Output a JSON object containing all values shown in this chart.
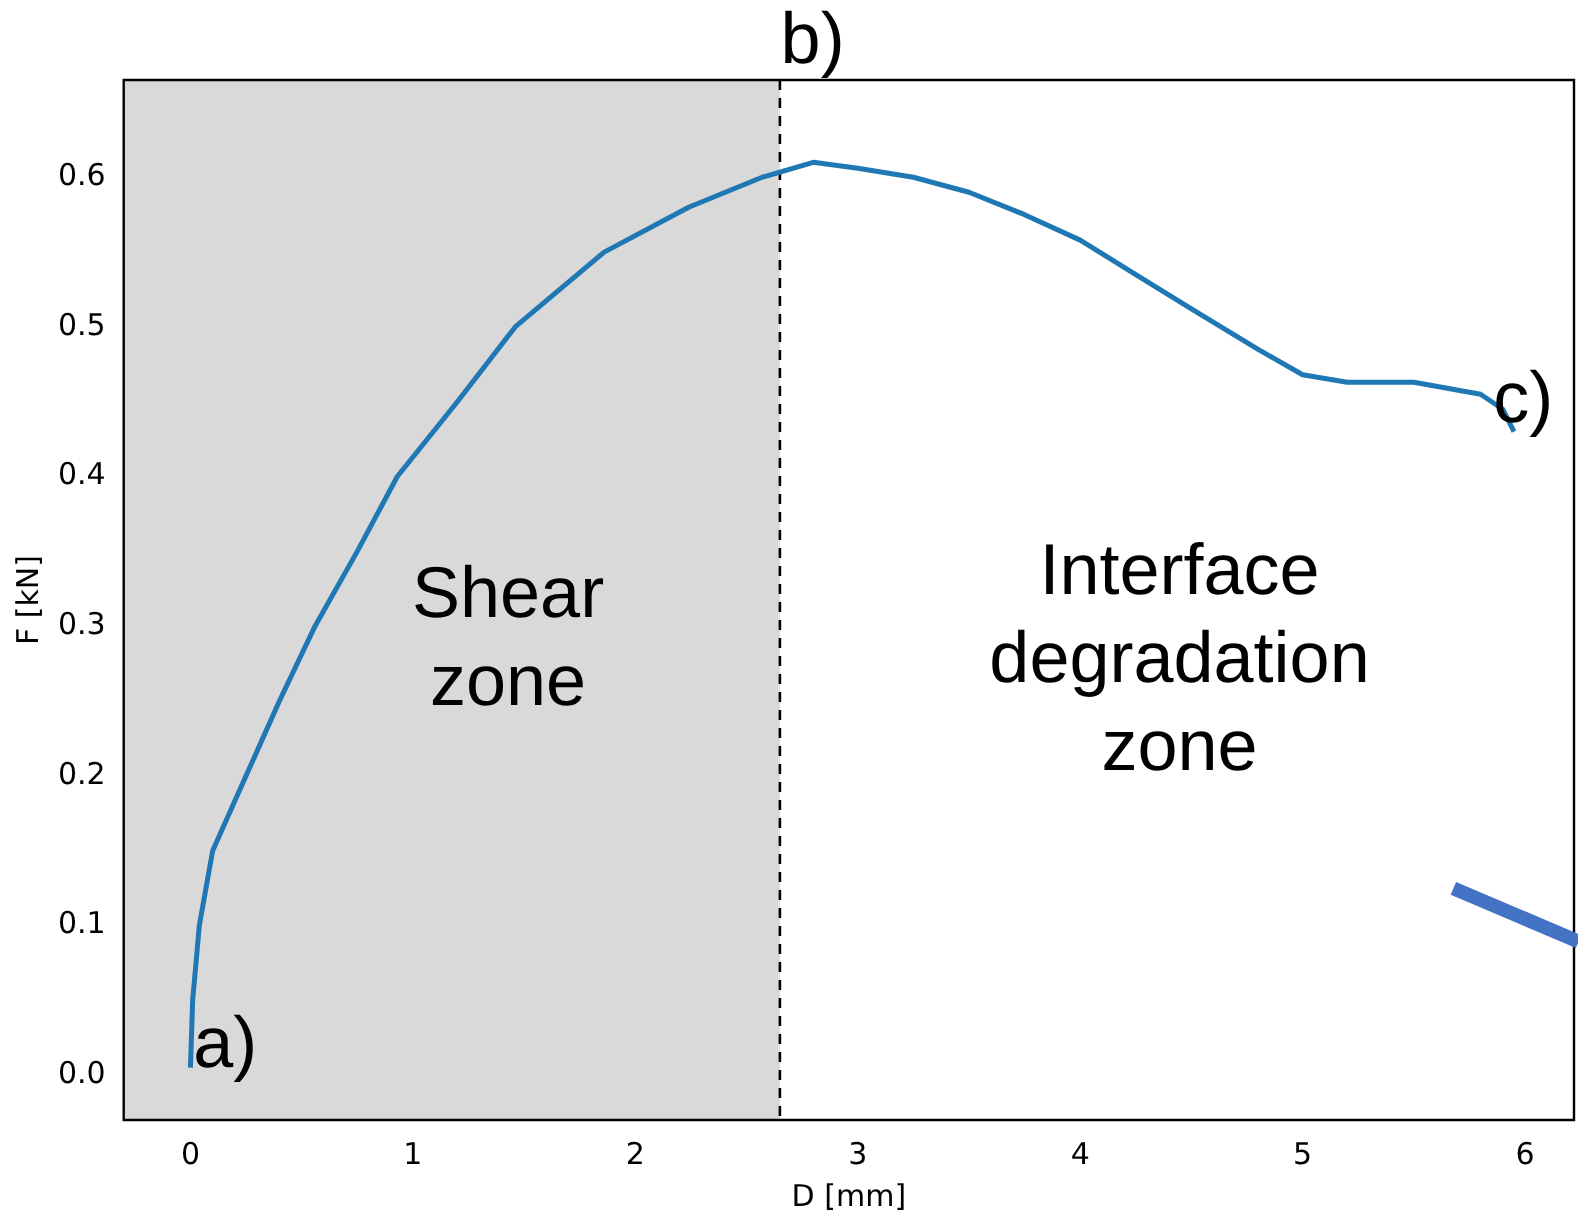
{
  "chart_data": {
    "type": "line",
    "xlabel": "D [mm]",
    "ylabel": "F [kN]",
    "xlim": [
      -0.3,
      6.22
    ],
    "ylim": [
      -0.03,
      0.665
    ],
    "xticks": [
      0,
      1,
      2,
      3,
      4,
      5,
      6
    ],
    "yticks": [
      {
        "value": 0,
        "label": "0.0"
      },
      {
        "value": 0.1,
        "label": "0.1"
      },
      {
        "value": 0.2,
        "label": "0.2"
      },
      {
        "value": 0.3,
        "label": "0.3"
      },
      {
        "value": 0.4,
        "label": "0.4"
      },
      {
        "value": 0.5,
        "label": "0.5"
      },
      {
        "value": 0.6,
        "label": "0.6"
      }
    ],
    "grid": false,
    "legend": false,
    "marker": "none",
    "line_style": "solid",
    "series": [
      {
        "color": "#1f77b4",
        "x": [
          0,
          0.01,
          0.04,
          0.1,
          0.25,
          0.4,
          0.56,
          0.75,
          0.93,
          1.2,
          1.46,
          1.86,
          2.24,
          2.57,
          2.8,
          3.0,
          3.25,
          3.5,
          3.75,
          4.0,
          4.25,
          4.5,
          4.8,
          5.0,
          5.2,
          5.5,
          5.8,
          5.9,
          5.95
        ],
        "values": [
          0.005,
          0.05,
          0.1,
          0.15,
          0.2,
          0.25,
          0.3,
          0.35,
          0.4,
          0.45,
          0.5,
          0.55,
          0.58,
          0.6,
          0.61,
          0.606,
          0.6,
          0.59,
          0.575,
          0.558,
          0.535,
          0.512,
          0.485,
          0.468,
          0.463,
          0.463,
          0.455,
          0.445,
          0.43
        ]
      }
    ],
    "bands": [
      {
        "axis": "x",
        "from": -0.3,
        "to": 2.65,
        "color": "#d9d9d9"
      }
    ],
    "ref_lines": [
      {
        "axis": "x",
        "value": 2.65,
        "color": "#000000",
        "line_style": "dashed"
      }
    ],
    "annotations": [
      "a)",
      "b)",
      "c)",
      "Shear\nzone",
      "Interface\ndegradation\nzone"
    ]
  }
}
